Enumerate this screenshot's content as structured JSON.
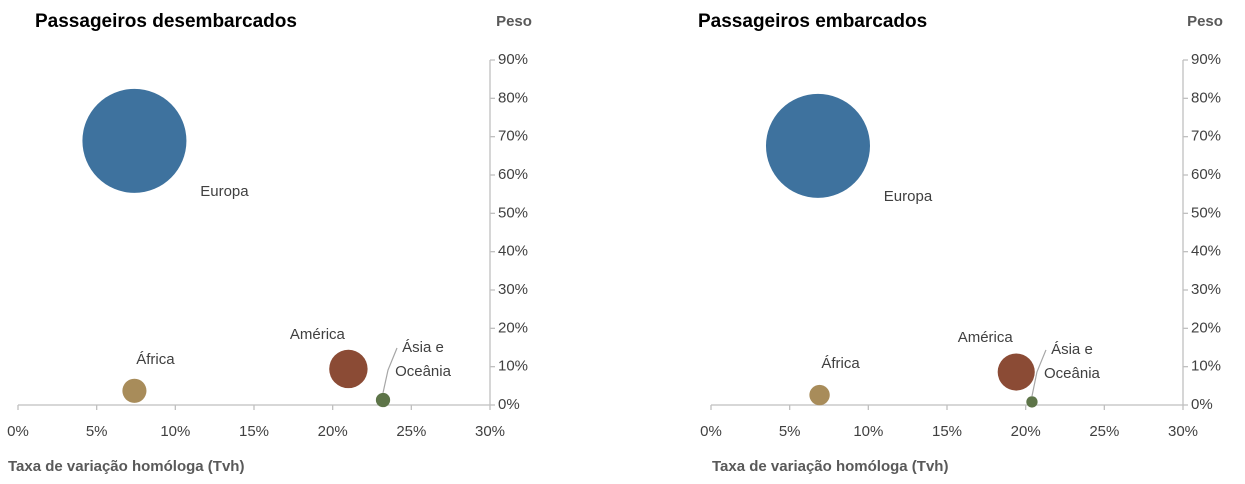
{
  "chart_data": [
    {
      "type": "bubble",
      "title": "Passageiros desembarcados",
      "y_label": "Peso",
      "x_label": "Taxa de variação homóloga (Tvh)",
      "categories": [
        "Europa",
        "África",
        "América",
        "Ásia e Oceânia"
      ],
      "colors": [
        "#3e729e",
        "#a88c5a",
        "#8b4b35",
        "#5d7448"
      ],
      "x": [
        7.4,
        7.4,
        21.0,
        23.2
      ],
      "values": [
        68.9,
        3.7,
        9.4,
        1.3
      ],
      "sizes": [
        68.9,
        3.7,
        9.4,
        1.3
      ],
      "xlim": [
        0,
        30
      ],
      "ylim": [
        0,
        90
      ],
      "xticks": [
        {
          "value": 0,
          "label": "0%"
        },
        {
          "value": 5,
          "label": "5%"
        },
        {
          "value": 10,
          "label": "10%"
        },
        {
          "value": 15,
          "label": "15%"
        },
        {
          "value": 20,
          "label": "20%"
        },
        {
          "value": 25,
          "label": "25%"
        },
        {
          "value": 30,
          "label": "30%"
        }
      ],
      "yticks": [
        {
          "value": 0,
          "label": "0%"
        },
        {
          "value": 10,
          "label": "10%"
        },
        {
          "value": 20,
          "label": "20%"
        },
        {
          "value": 30,
          "label": "30%"
        },
        {
          "value": 40,
          "label": "40%"
        },
        {
          "value": 50,
          "label": "50%"
        },
        {
          "value": 60,
          "label": "60%"
        },
        {
          "value": 70,
          "label": "70%"
        },
        {
          "value": 80,
          "label": "80%"
        },
        {
          "value": 90,
          "label": "90%"
        }
      ]
    },
    {
      "type": "bubble",
      "title": "Passageiros embarcados",
      "y_label": "Peso",
      "x_label": "Taxa de variação homóloga (Tvh)",
      "categories": [
        "Europa",
        "África",
        "América",
        "Ásia e Oceânia"
      ],
      "colors": [
        "#3e729e",
        "#a88c5a",
        "#8b4b35",
        "#5d7448"
      ],
      "x": [
        6.8,
        6.9,
        19.4,
        20.4
      ],
      "values": [
        67.6,
        2.6,
        8.6,
        0.8
      ],
      "sizes": [
        67.6,
        2.6,
        8.6,
        0.8
      ],
      "xlim": [
        0,
        30
      ],
      "ylim": [
        0,
        90
      ],
      "xticks": [
        {
          "value": 0,
          "label": "0%"
        },
        {
          "value": 5,
          "label": "5%"
        },
        {
          "value": 10,
          "label": "10%"
        },
        {
          "value": 15,
          "label": "15%"
        },
        {
          "value": 20,
          "label": "20%"
        },
        {
          "value": 25,
          "label": "25%"
        },
        {
          "value": 30,
          "label": "30%"
        }
      ],
      "yticks": [
        {
          "value": 0,
          "label": "0%"
        },
        {
          "value": 10,
          "label": "10%"
        },
        {
          "value": 20,
          "label": "20%"
        },
        {
          "value": 30,
          "label": "30%"
        },
        {
          "value": 40,
          "label": "40%"
        },
        {
          "value": 50,
          "label": "50%"
        },
        {
          "value": 60,
          "label": "60%"
        },
        {
          "value": 70,
          "label": "70%"
        },
        {
          "value": 80,
          "label": "80%"
        },
        {
          "value": 90,
          "label": "90%"
        }
      ]
    }
  ]
}
